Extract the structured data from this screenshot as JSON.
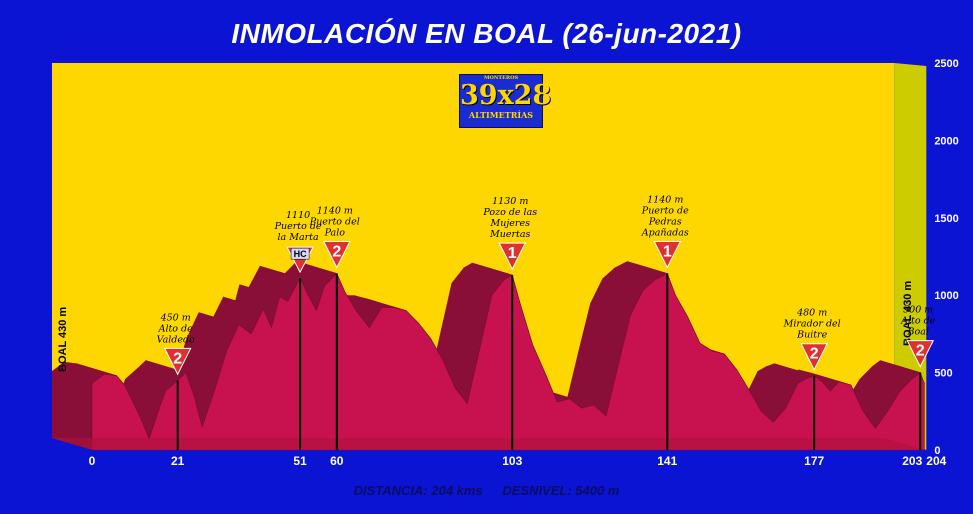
{
  "title": "INMOLACIÓN EN BOAL (26-jun-2021)",
  "footer": {
    "distance": "DISTANCIA: 204 kms",
    "elevation": "DESNIVEL:   5400 m"
  },
  "logo": {
    "top": "MONTEROS",
    "main": "39x28",
    "bottom": "ALTIMETRÍAS"
  },
  "colors": {
    "background": "#0a14d2",
    "plot": "#ffd700",
    "side_wall": "#cccc00",
    "profile": "#c8124f",
    "profile_top": "#8a0f38",
    "badge": "#e03030"
  },
  "chart_data": {
    "type": "area",
    "xlim": [
      0,
      204
    ],
    "ylim": [
      0,
      2500
    ],
    "yticks": [
      0,
      500,
      1000,
      1500,
      2000,
      2500
    ],
    "xticks": [
      0,
      21,
      51,
      60,
      103,
      141,
      177,
      203,
      204
    ],
    "start_label": "BOAL  430 m",
    "end_label": "BOAL 430 m",
    "profile": [
      [
        0,
        430
      ],
      [
        3,
        490
      ],
      [
        6,
        480
      ],
      [
        8,
        420
      ],
      [
        10,
        310
      ],
      [
        12,
        200
      ],
      [
        14,
        70
      ],
      [
        16,
        230
      ],
      [
        18,
        380
      ],
      [
        21,
        450
      ],
      [
        23,
        500
      ],
      [
        25,
        350
      ],
      [
        27,
        150
      ],
      [
        30,
        380
      ],
      [
        33,
        640
      ],
      [
        36,
        810
      ],
      [
        39,
        750
      ],
      [
        42,
        910
      ],
      [
        44,
        790
      ],
      [
        46,
        990
      ],
      [
        48,
        960
      ],
      [
        51,
        1110
      ],
      [
        53,
        1000
      ],
      [
        55,
        900
      ],
      [
        57,
        1060
      ],
      [
        60,
        1140
      ],
      [
        62,
        1020
      ],
      [
        65,
        890
      ],
      [
        68,
        790
      ],
      [
        71,
        920
      ],
      [
        74,
        920
      ],
      [
        77,
        900
      ],
      [
        80,
        820
      ],
      [
        83,
        720
      ],
      [
        86,
        580
      ],
      [
        89,
        400
      ],
      [
        92,
        300
      ],
      [
        95,
        650
      ],
      [
        98,
        1000
      ],
      [
        101,
        1100
      ],
      [
        103,
        1130
      ],
      [
        105,
        940
      ],
      [
        108,
        680
      ],
      [
        111,
        500
      ],
      [
        114,
        310
      ],
      [
        117,
        330
      ],
      [
        120,
        270
      ],
      [
        123,
        290
      ],
      [
        126,
        220
      ],
      [
        129,
        550
      ],
      [
        132,
        870
      ],
      [
        135,
        1030
      ],
      [
        138,
        1100
      ],
      [
        141,
        1140
      ],
      [
        143,
        1000
      ],
      [
        146,
        860
      ],
      [
        149,
        690
      ],
      [
        152,
        640
      ],
      [
        155,
        620
      ],
      [
        158,
        520
      ],
      [
        161,
        390
      ],
      [
        164,
        250
      ],
      [
        167,
        180
      ],
      [
        170,
        270
      ],
      [
        173,
        430
      ],
      [
        175,
        460
      ],
      [
        177,
        480
      ],
      [
        179,
        440
      ],
      [
        181,
        380
      ],
      [
        183,
        440
      ],
      [
        186,
        420
      ],
      [
        189,
        250
      ],
      [
        192,
        140
      ],
      [
        195,
        250
      ],
      [
        198,
        380
      ],
      [
        201,
        460
      ],
      [
        203,
        500
      ],
      [
        204,
        430
      ]
    ],
    "climbs": [
      {
        "km": 21,
        "altitude": "450 m",
        "name": "Alto de Valdedo",
        "category": "2"
      },
      {
        "km": 51,
        "altitude": "1110",
        "name": "Puerto de la Marta",
        "category": "HC"
      },
      {
        "km": 60,
        "altitude": "1140 m",
        "name": "Puerto del Palo",
        "category": "2"
      },
      {
        "km": 103,
        "altitude": "1130 m",
        "name": "Pozo de las Mujeres Muertas",
        "category": "1"
      },
      {
        "km": 141,
        "altitude": "1140 m",
        "name": "Puerto de Pedras Apañadas",
        "category": "1"
      },
      {
        "km": 177,
        "altitude": "480 m",
        "name": "Mirador del Buitre",
        "category": "2"
      },
      {
        "km": 203,
        "altitude": "500 m",
        "name": "Alto de Boal",
        "category": "2"
      }
    ]
  }
}
